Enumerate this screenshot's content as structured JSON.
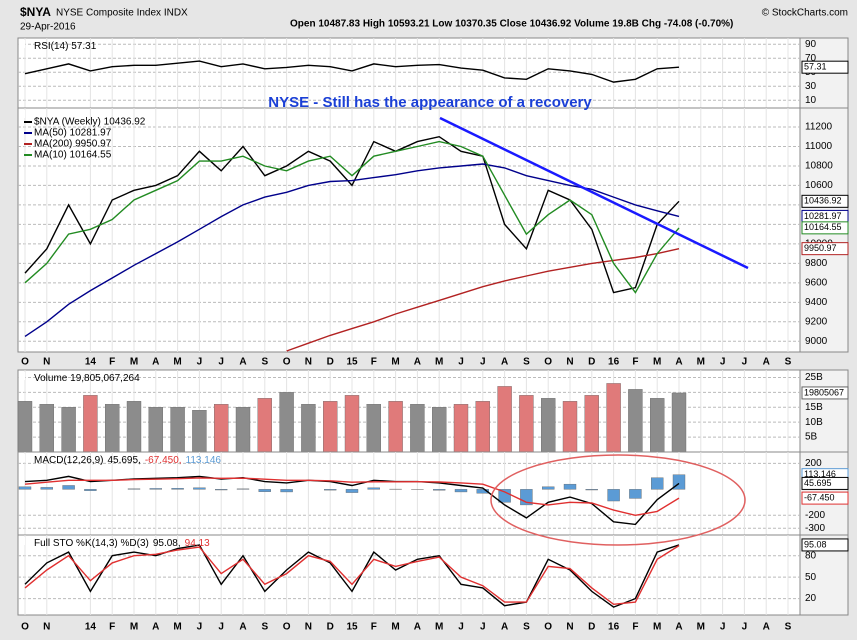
{
  "header": {
    "symbol": "$NYA",
    "name": "NYSE Composite Index INDX",
    "date": "29-Apr-2016",
    "quote": "Open 10487.83  High 10593.21  Low 10370.35  Close 10436.92  Volume 19.8B  Chg -74.08 (-0.70%)",
    "credit": "© StockCharts.com"
  },
  "chart_data": [
    {
      "type": "line",
      "title": "RSI(14) 57.31",
      "color": "#000000",
      "values": [
        48,
        55,
        62,
        52,
        58,
        60,
        60,
        63,
        66,
        58,
        62,
        55,
        57,
        60,
        58,
        52,
        62,
        58,
        60,
        61,
        56,
        53,
        42,
        40,
        55,
        52,
        47,
        36,
        40,
        55,
        57.31,
        null,
        null,
        null,
        null,
        null
      ],
      "ylim": [
        -1,
        99
      ],
      "yticks": [
        10,
        30,
        50,
        70,
        90
      ],
      "grid": true
    },
    {
      "type": "line",
      "title": "$NYA (Weekly) 10436.92",
      "annotation": "NYSE -  Still has the appearance of a recovery",
      "categories": [
        "O",
        "N",
        null,
        "14",
        "F",
        "M",
        "A",
        "M",
        "J",
        "J",
        "A",
        "S",
        "O",
        "N",
        "D",
        "15",
        "F",
        "M",
        "A",
        "M",
        "J",
        "J",
        "A",
        "S",
        "O",
        "N",
        "D",
        "16",
        "F",
        "M",
        "A",
        "M",
        "J",
        "J",
        "A",
        "S"
      ],
      "series": [
        {
          "name": "$NYA (Weekly) 10436.92",
          "color": "#000000",
          "values": [
            9700,
            9950,
            10400,
            10000,
            10450,
            10550,
            10600,
            10700,
            10950,
            10750,
            11000,
            10700,
            10800,
            10950,
            10850,
            10600,
            11050,
            10950,
            11050,
            11100,
            10950,
            10900,
            10200,
            9950,
            10550,
            10450,
            10150,
            9500,
            9550,
            10200,
            10436.92,
            null,
            null,
            null,
            null,
            null
          ]
        },
        {
          "name": "MA(50) 10281.97",
          "color": "#00008b",
          "values": [
            9050,
            9200,
            9380,
            9520,
            9650,
            9780,
            9900,
            10020,
            10150,
            10280,
            10400,
            10480,
            10530,
            10600,
            10640,
            10650,
            10680,
            10710,
            10750,
            10780,
            10800,
            10820,
            10780,
            10700,
            10650,
            10600,
            10560,
            10480,
            10400,
            10340,
            10281.97,
            null,
            null,
            null,
            null,
            null
          ]
        },
        {
          "name": "MA(200) 9950.97",
          "color": "#b22222",
          "values": [
            null,
            null,
            null,
            null,
            null,
            null,
            null,
            null,
            null,
            null,
            null,
            null,
            8900,
            8980,
            9060,
            9130,
            9200,
            9280,
            9350,
            9420,
            9490,
            9560,
            9620,
            9670,
            9720,
            9760,
            9800,
            9830,
            9860,
            9900,
            9950.97,
            null,
            null,
            null,
            null,
            null
          ]
        },
        {
          "name": "MA(10) 10164.55",
          "color": "#228b22",
          "values": [
            9600,
            9800,
            10100,
            10150,
            10250,
            10450,
            10550,
            10650,
            10850,
            10850,
            10900,
            10800,
            10750,
            10850,
            10900,
            10700,
            10900,
            10950,
            11000,
            11050,
            11000,
            10900,
            10500,
            10100,
            10300,
            10450,
            10300,
            9800,
            9500,
            9900,
            10164.55,
            null,
            null,
            null,
            null,
            null
          ]
        }
      ],
      "ylim": [
        8890,
        11395
      ],
      "yticks": [
        9000,
        9200,
        9400,
        9600,
        9800,
        10000,
        10200,
        10400,
        10600,
        10800,
        11000,
        11200
      ],
      "grid": true
    },
    {
      "type": "bar",
      "title": "Volume 19,805,067,264",
      "last_label": "19805067",
      "up_color": "#8c8c8c",
      "down_color": "#e07a7a",
      "values": [
        17,
        16,
        15,
        19,
        16,
        17,
        15,
        15,
        14,
        16,
        15,
        18,
        20,
        16,
        17,
        19,
        16,
        17,
        16,
        15,
        16,
        17,
        22,
        19,
        18,
        17,
        19,
        23,
        21,
        18,
        19.805,
        null,
        null,
        null,
        null,
        null
      ],
      "ylim": [
        0,
        27.5
      ],
      "yticks": [
        {
          "value": 5,
          "label": "5B"
        },
        {
          "value": 10,
          "label": "10B"
        },
        {
          "value": 15,
          "label": "15B"
        },
        {
          "value": 20,
          "label": "20B"
        },
        {
          "value": 25,
          "label": "25B"
        }
      ],
      "grid": true
    },
    {
      "type": "line",
      "title": "MACD(12,26,9)",
      "series": [
        {
          "type": "bar",
          "color": "#5b9bd5",
          "last_label": "113.146",
          "values": [
            20,
            15,
            30,
            -10,
            0,
            5,
            7,
            8,
            12,
            -5,
            4,
            -18,
            -20,
            0,
            -6,
            -25,
            12,
            2,
            1,
            -7,
            -20,
            -30,
            -100,
            -120,
            20,
            40,
            -5,
            -90,
            -70,
            90,
            113.146,
            null,
            null,
            null,
            null,
            null
          ]
        },
        {
          "type": "line",
          "color": "#000000",
          "last_label": "45.695",
          "values": [
            60,
            70,
            100,
            60,
            70,
            80,
            85,
            90,
            100,
            80,
            90,
            60,
            50,
            70,
            60,
            30,
            70,
            60,
            60,
            50,
            30,
            10,
            -120,
            -220,
            -100,
            -60,
            -110,
            -250,
            -270,
            -80,
            45.695,
            null,
            null,
            null,
            null,
            null
          ]
        },
        {
          "type": "line",
          "color": "#e03030",
          "last_label": "-67.450",
          "values": [
            40,
            55,
            70,
            70,
            70,
            75,
            78,
            82,
            88,
            85,
            86,
            78,
            70,
            70,
            66,
            55,
            58,
            58,
            59,
            57,
            50,
            40,
            -20,
            -100,
            -120,
            -100,
            -105,
            -160,
            -200,
            -170,
            -67.45,
            null,
            null,
            null,
            null,
            null
          ]
        }
      ],
      "title_parts": [
        {
          "text": "45.695,",
          "color": "#000000"
        },
        {
          "text": "-67.450,",
          "color": "#e03030"
        },
        {
          "text": "113.146",
          "color": "#5b9bd5"
        }
      ],
      "ylim": [
        -352,
        288
      ],
      "yticks": [
        -300,
        -200,
        200
      ],
      "grid": true
    },
    {
      "type": "line",
      "title": "Full STO %K(14,3) %D(3)",
      "categories": [
        "O",
        "N",
        null,
        "14",
        "F",
        "M",
        "A",
        "M",
        "J",
        "J",
        "A",
        "S",
        "O",
        "N",
        "D",
        "15",
        "F",
        "M",
        "A",
        "M",
        "J",
        "J",
        "A",
        "S",
        "O",
        "N",
        "D",
        "16",
        "F",
        "M",
        "A",
        "M",
        "J",
        "J",
        "A",
        "S"
      ],
      "series": [
        {
          "type": "line",
          "color": "#000000",
          "values": [
            40,
            70,
            85,
            30,
            80,
            85,
            80,
            90,
            95,
            40,
            80,
            30,
            60,
            85,
            70,
            30,
            85,
            60,
            75,
            80,
            40,
            35,
            10,
            15,
            75,
            60,
            30,
            8,
            20,
            85,
            95.08,
            null,
            null,
            null,
            null,
            null
          ]
        },
        {
          "type": "line",
          "color": "#e03030",
          "values": [
            35,
            60,
            80,
            45,
            70,
            80,
            82,
            88,
            92,
            55,
            75,
            40,
            55,
            80,
            72,
            40,
            75,
            65,
            72,
            78,
            50,
            38,
            15,
            15,
            65,
            62,
            35,
            12,
            15,
            75,
            94.13,
            null,
            null,
            null,
            null,
            null
          ]
        }
      ],
      "title_parts": [
        {
          "text": "95.08,",
          "color": "#000000"
        },
        {
          "text": "94.13",
          "color": "#e03030"
        }
      ],
      "ylim": [
        -3,
        109
      ],
      "yticks": [
        20,
        50,
        80
      ],
      "grid": true
    }
  ]
}
